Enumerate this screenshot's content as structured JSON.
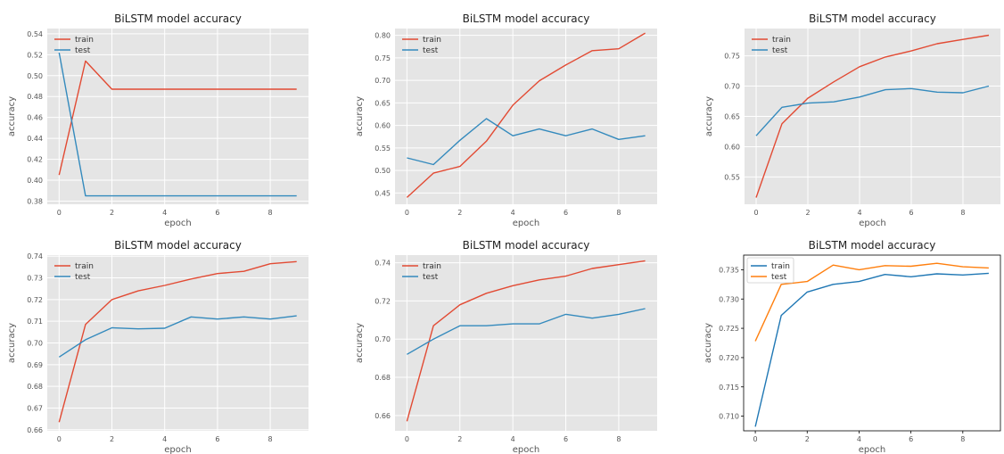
{
  "chart_data": [
    {
      "type": "line",
      "title": "BiLSTM model accuracy",
      "xlabel": "epoch",
      "ylabel": "accuracy",
      "style": "ggplot",
      "grid": true,
      "legend_position": "top-left",
      "xlim": [
        -0.45,
        9.45
      ],
      "ylim": [
        0.377,
        0.545
      ],
      "xticks": [
        0,
        2,
        4,
        6,
        8
      ],
      "yticks": [
        0.38,
        0.4,
        0.42,
        0.44,
        0.46,
        0.48,
        0.5,
        0.52,
        0.54
      ],
      "ytick_labels": [
        "0.38",
        "0.40",
        "0.42",
        "0.44",
        "0.46",
        "0.48",
        "0.50",
        "0.52",
        "0.54"
      ],
      "x": [
        0,
        1,
        2,
        3,
        4,
        5,
        6,
        7,
        8,
        9
      ],
      "series": [
        {
          "name": "train",
          "color": "#E24A33",
          "values": [
            0.405,
            0.514,
            0.487,
            0.487,
            0.487,
            0.487,
            0.487,
            0.487,
            0.487,
            0.487
          ]
        },
        {
          "name": "test",
          "color": "#348ABD",
          "values": [
            0.522,
            0.385,
            0.385,
            0.385,
            0.385,
            0.385,
            0.385,
            0.385,
            0.385,
            0.385
          ]
        }
      ]
    },
    {
      "type": "line",
      "title": "BiLSTM model accuracy",
      "xlabel": "epoch",
      "ylabel": "accuracy",
      "style": "ggplot",
      "grid": true,
      "legend_position": "top-left",
      "xlim": [
        -0.45,
        9.45
      ],
      "ylim": [
        0.425,
        0.815
      ],
      "xticks": [
        0,
        2,
        4,
        6,
        8
      ],
      "yticks": [
        0.45,
        0.5,
        0.55,
        0.6,
        0.65,
        0.7,
        0.75,
        0.8
      ],
      "ytick_labels": [
        "0.45",
        "0.50",
        "0.55",
        "0.60",
        "0.65",
        "0.70",
        "0.75",
        "0.80"
      ],
      "x": [
        0,
        1,
        2,
        3,
        4,
        5,
        6,
        7,
        8,
        9
      ],
      "series": [
        {
          "name": "train",
          "color": "#E24A33",
          "values": [
            0.44,
            0.494,
            0.509,
            0.565,
            0.645,
            0.699,
            0.734,
            0.766,
            0.77,
            0.805
          ]
        },
        {
          "name": "test",
          "color": "#348ABD",
          "values": [
            0.528,
            0.513,
            0.567,
            0.615,
            0.577,
            0.592,
            0.577,
            0.592,
            0.569,
            0.577
          ]
        }
      ]
    },
    {
      "type": "line",
      "title": "BiLSTM model accuracy",
      "xlabel": "epoch",
      "ylabel": "accuracy",
      "style": "ggplot",
      "grid": true,
      "legend_position": "top-left",
      "xlim": [
        -0.45,
        9.45
      ],
      "ylim": [
        0.505,
        0.795
      ],
      "xticks": [
        0,
        2,
        4,
        6,
        8
      ],
      "yticks": [
        0.55,
        0.6,
        0.65,
        0.7,
        0.75
      ],
      "ytick_labels": [
        "0.55",
        "0.60",
        "0.65",
        "0.70",
        "0.75"
      ],
      "x": [
        0,
        1,
        2,
        3,
        4,
        5,
        6,
        7,
        8,
        9
      ],
      "series": [
        {
          "name": "train",
          "color": "#E24A33",
          "values": [
            0.516,
            0.638,
            0.68,
            0.707,
            0.732,
            0.748,
            0.758,
            0.77,
            0.777,
            0.784
          ]
        },
        {
          "name": "test",
          "color": "#348ABD",
          "values": [
            0.618,
            0.665,
            0.672,
            0.674,
            0.682,
            0.694,
            0.696,
            0.69,
            0.689,
            0.7
          ]
        }
      ]
    },
    {
      "type": "line",
      "title": "BiLSTM model accuracy",
      "xlabel": "epoch",
      "ylabel": "accuracy",
      "style": "ggplot",
      "grid": true,
      "legend_position": "top-left",
      "xlim": [
        -0.45,
        9.45
      ],
      "ylim": [
        0.6595,
        0.7405
      ],
      "xticks": [
        0,
        2,
        4,
        6,
        8
      ],
      "yticks": [
        0.66,
        0.67,
        0.68,
        0.69,
        0.7,
        0.71,
        0.72,
        0.73,
        0.74
      ],
      "ytick_labels": [
        "0.66",
        "0.67",
        "0.68",
        "0.69",
        "0.70",
        "0.71",
        "0.72",
        "0.73",
        "0.74"
      ],
      "x": [
        0,
        1,
        2,
        3,
        4,
        5,
        6,
        7,
        8,
        9
      ],
      "series": [
        {
          "name": "train",
          "color": "#E24A33",
          "values": [
            0.6635,
            0.7085,
            0.72,
            0.724,
            0.7265,
            0.7295,
            0.732,
            0.733,
            0.7365,
            0.7375
          ]
        },
        {
          "name": "test",
          "color": "#348ABD",
          "values": [
            0.6935,
            0.7015,
            0.707,
            0.7065,
            0.7068,
            0.712,
            0.711,
            0.712,
            0.711,
            0.7125
          ]
        }
      ]
    },
    {
      "type": "line",
      "title": "BiLSTM model accuracy",
      "xlabel": "epoch",
      "ylabel": "accuracy",
      "style": "ggplot",
      "grid": true,
      "legend_position": "top-left",
      "xlim": [
        -0.45,
        9.45
      ],
      "ylim": [
        0.652,
        0.744
      ],
      "xticks": [
        0,
        2,
        4,
        6,
        8
      ],
      "yticks": [
        0.66,
        0.68,
        0.7,
        0.72,
        0.74
      ],
      "ytick_labels": [
        "0.66",
        "0.68",
        "0.70",
        "0.72",
        "0.74"
      ],
      "x": [
        0,
        1,
        2,
        3,
        4,
        5,
        6,
        7,
        8,
        9
      ],
      "series": [
        {
          "name": "train",
          "color": "#E24A33",
          "values": [
            0.657,
            0.707,
            0.718,
            0.724,
            0.728,
            0.731,
            0.733,
            0.737,
            0.739,
            0.741
          ]
        },
        {
          "name": "test",
          "color": "#348ABD",
          "values": [
            0.692,
            0.7,
            0.707,
            0.707,
            0.708,
            0.708,
            0.713,
            0.711,
            0.713,
            0.716
          ]
        }
      ]
    },
    {
      "type": "line",
      "title": "BiLSTM model accuracy",
      "xlabel": "epoch",
      "ylabel": "accuracy",
      "style": "default",
      "grid": false,
      "legend_position": "top-left",
      "xlim": [
        -0.45,
        9.45
      ],
      "ylim": [
        0.7075,
        0.7375
      ],
      "xticks": [
        0,
        2,
        4,
        6,
        8
      ],
      "yticks": [
        0.71,
        0.715,
        0.72,
        0.725,
        0.73,
        0.735
      ],
      "ytick_labels": [
        "0.710",
        "0.715",
        "0.720",
        "0.725",
        "0.730",
        "0.735"
      ],
      "x": [
        0,
        1,
        2,
        3,
        4,
        5,
        6,
        7,
        8,
        9
      ],
      "series": [
        {
          "name": "train",
          "color": "#1F77B4",
          "values": [
            0.7082,
            0.7272,
            0.7312,
            0.7325,
            0.733,
            0.7342,
            0.7338,
            0.7343,
            0.7341,
            0.7344
          ]
        },
        {
          "name": "test",
          "color": "#FF7F0E",
          "values": [
            0.7228,
            0.7325,
            0.733,
            0.7358,
            0.735,
            0.7357,
            0.7356,
            0.7361,
            0.7355,
            0.7353
          ]
        }
      ]
    }
  ]
}
